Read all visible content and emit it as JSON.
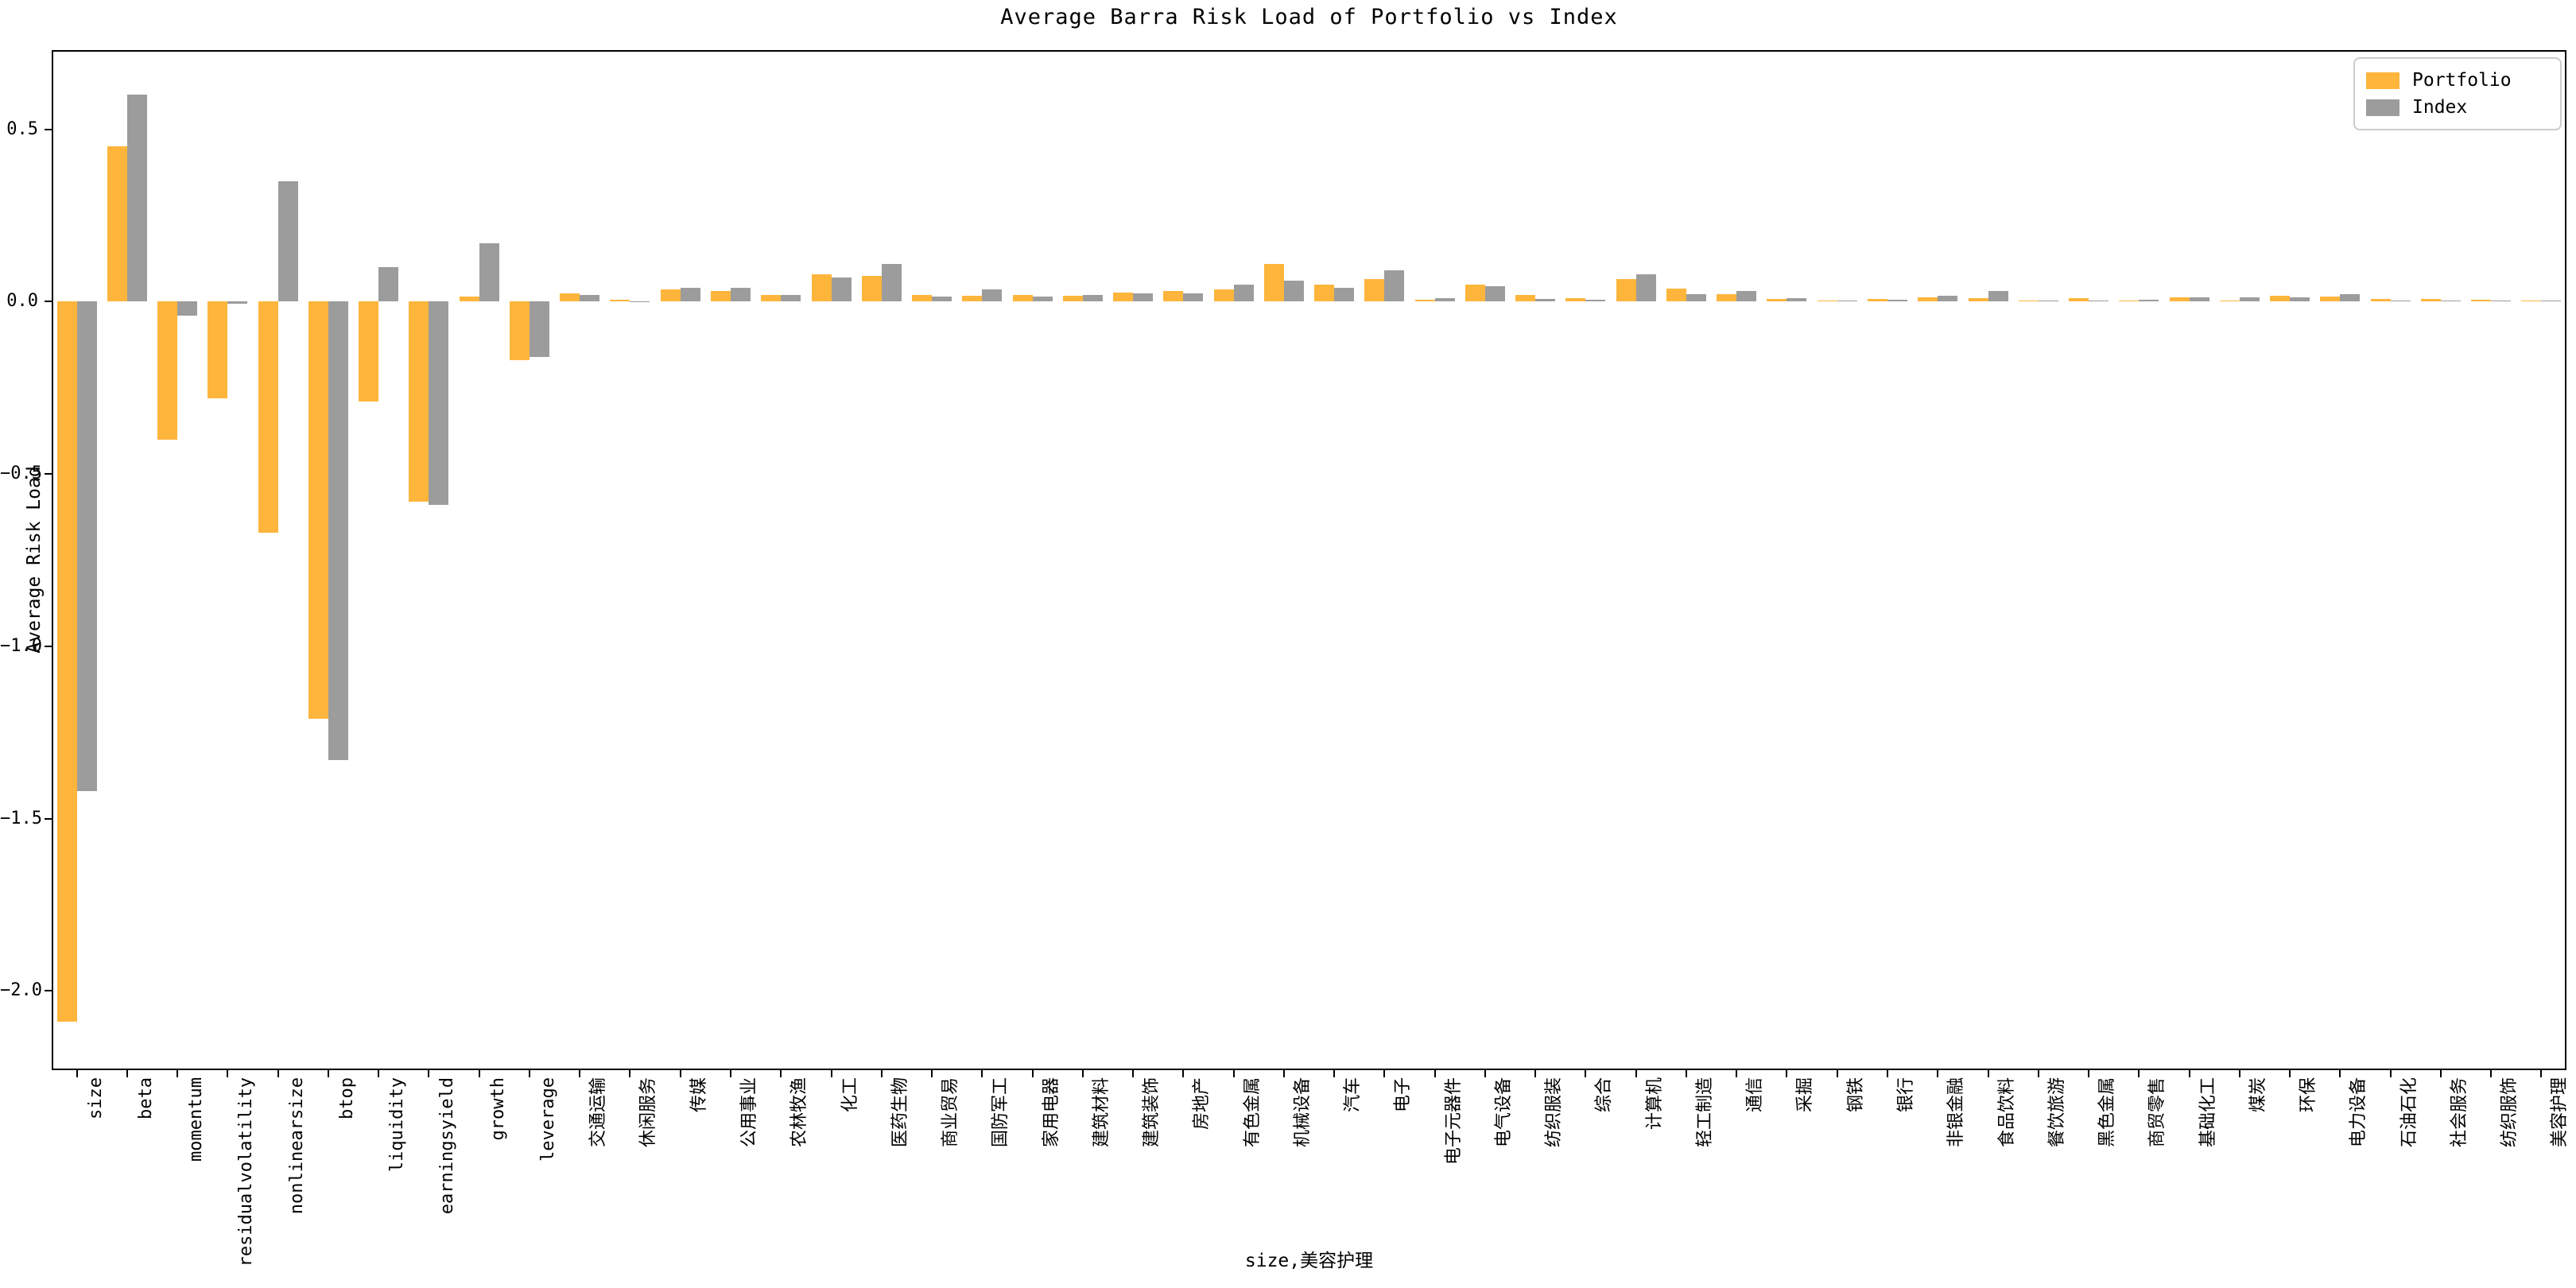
{
  "title": "Average Barra Risk Load of Portfolio vs Index",
  "chart_data": {
    "type": "bar",
    "title": "Average Barra Risk Load of Portfolio vs Index",
    "ylabel": "Average Risk Load",
    "xlabel": "size,美容护理",
    "grid": false,
    "legend_position": "upper right",
    "ylim": [
      -2.23,
      0.73
    ],
    "yticks": [
      0.5,
      0.0,
      -0.5,
      -1.0,
      -1.5,
      -2.0
    ],
    "ytick_labels": [
      "0.5",
      "0.0",
      "−0.5",
      "−1.0",
      "−1.5",
      "−2.0"
    ],
    "categories": [
      "size",
      "beta",
      "momentum",
      "residualvolatility",
      "nonlinearsize",
      "btop",
      "liquidity",
      "earningsyield",
      "growth",
      "leverage",
      "交通运输",
      "休闲服务",
      "传媒",
      "公用事业",
      "农林牧渔",
      "化工",
      "医药生物",
      "商业贸易",
      "国防军工",
      "家用电器",
      "建筑材料",
      "建筑装饰",
      "房地产",
      "有色金属",
      "机械设备",
      "汽车",
      "电子",
      "电子元器件",
      "电气设备",
      "纺织服装",
      "综合",
      "计算机",
      "轻工制造",
      "通信",
      "采掘",
      "钢铁",
      "银行",
      "非银金融",
      "食品饮料",
      "餐饮旅游",
      "黑色金属",
      "商贸零售",
      "基础化工",
      "煤炭",
      "环保",
      "电力设备",
      "石油石化",
      "社会服务",
      "纺织服饰",
      "美容护理"
    ],
    "series": [
      {
        "name": "Portfolio",
        "color": "#feb53c",
        "values": [
          -2.09,
          0.45,
          -0.4,
          -0.28,
          -0.67,
          -1.21,
          -0.29,
          -0.58,
          0.015,
          -0.17,
          0.025,
          0.005,
          0.035,
          0.03,
          0.02,
          0.08,
          0.075,
          0.02,
          0.018,
          0.02,
          0.017,
          0.027,
          0.03,
          0.035,
          0.11,
          0.05,
          0.065,
          0.005,
          0.05,
          0.02,
          0.01,
          0.065,
          0.038,
          0.022,
          0.008,
          0.004,
          0.008,
          0.012,
          0.01,
          0.002,
          0.01,
          0.002,
          0.012,
          0.004,
          0.018,
          0.015,
          0.008,
          0.008,
          0.005,
          0.003
        ]
      },
      {
        "name": "Index",
        "color": "#9c9c9c",
        "values": [
          -1.42,
          0.6,
          -0.04,
          -0.005,
          0.35,
          -1.33,
          0.1,
          -0.59,
          0.17,
          -0.16,
          0.02,
          0.0,
          0.04,
          0.04,
          0.02,
          0.07,
          0.11,
          0.015,
          0.035,
          0.015,
          0.02,
          0.023,
          0.025,
          0.05,
          0.06,
          0.04,
          0.09,
          0.01,
          0.045,
          0.008,
          0.005,
          0.08,
          0.022,
          0.03,
          0.01,
          0.004,
          0.005,
          0.018,
          0.03,
          0.001,
          0.004,
          0.005,
          0.012,
          0.012,
          0.012,
          0.022,
          0.004,
          0.004,
          0.002,
          0.003
        ]
      }
    ]
  }
}
